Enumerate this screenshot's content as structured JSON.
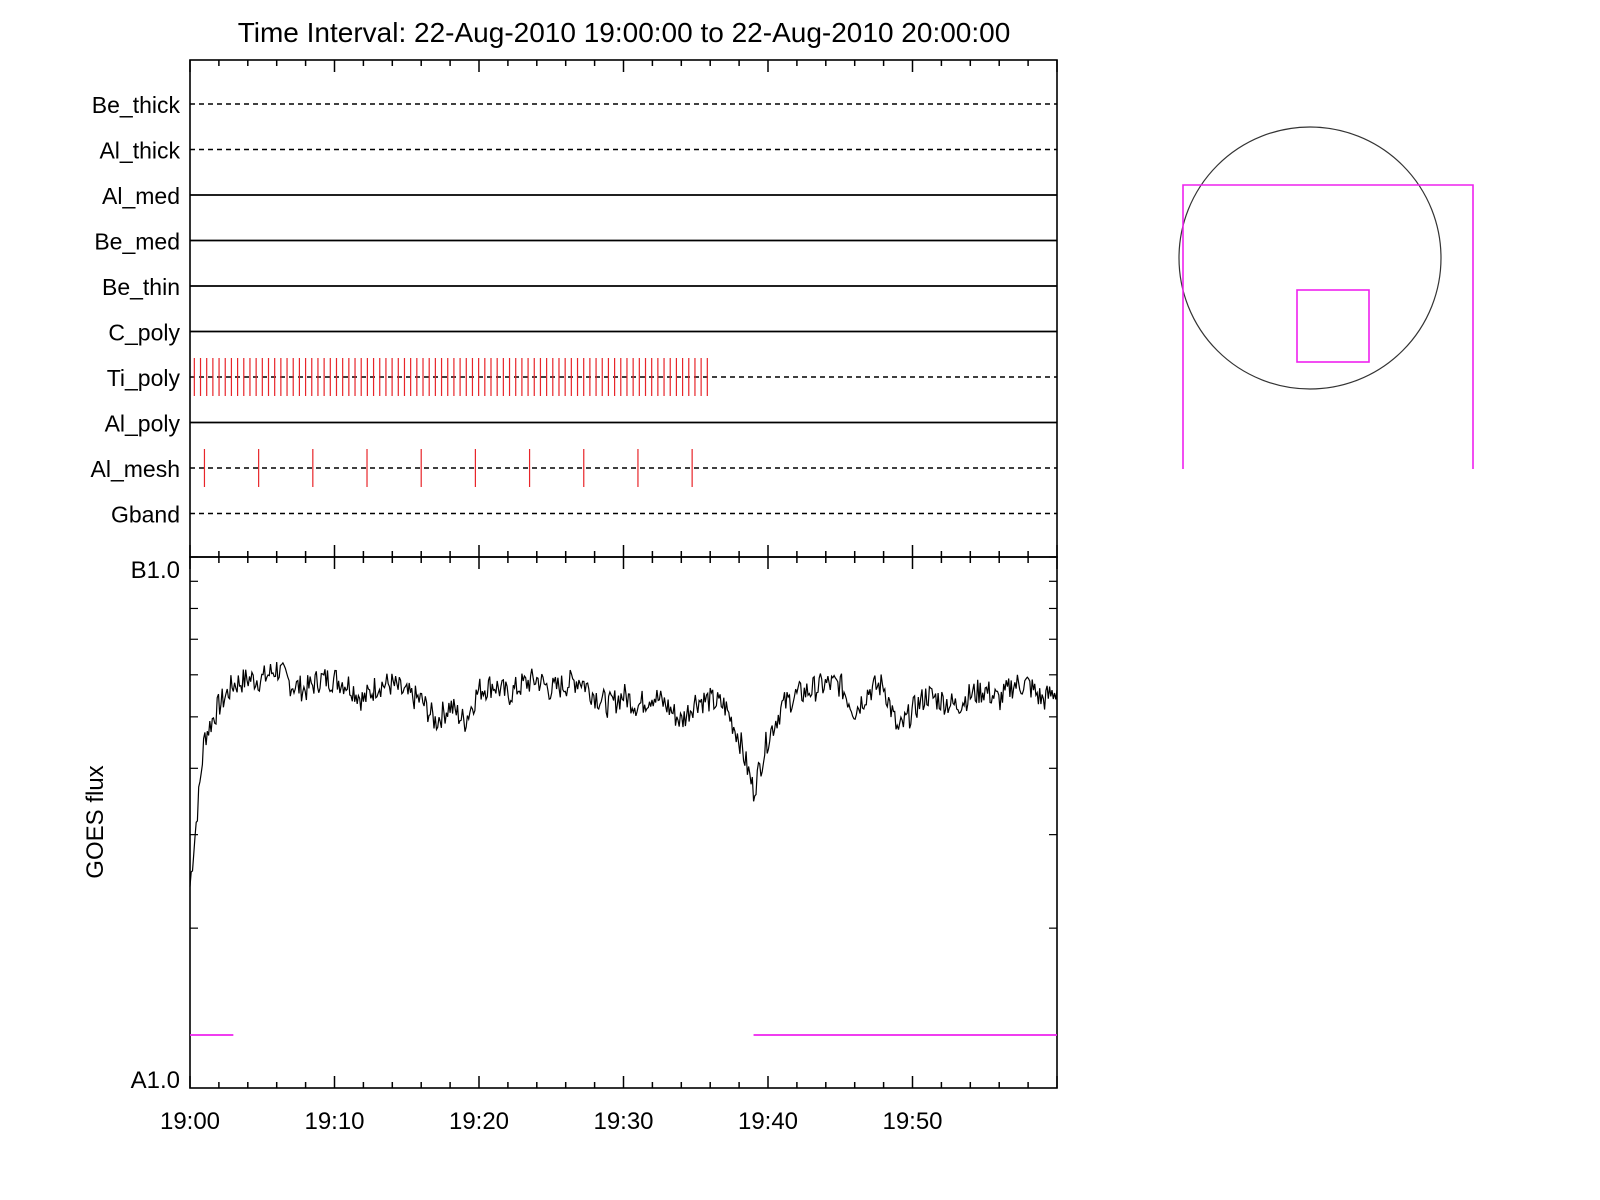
{
  "title": "Time Interval: 22-Aug-2010 19:00:00 to 22-Aug-2010 20:00:00",
  "colors": {
    "axis": "#000000",
    "events": "#e8252a",
    "magenta": "#ee22ee",
    "curve": "#000000"
  },
  "chart_data": [
    {
      "type": "timeline",
      "x_range": [
        "19:00",
        "20:00"
      ],
      "rows": [
        {
          "name": "Be_thick",
          "style": "dashed",
          "events": []
        },
        {
          "name": "Al_thick",
          "style": "dashed",
          "events": []
        },
        {
          "name": "Al_med",
          "style": "solid",
          "events": []
        },
        {
          "name": "Be_med",
          "style": "solid",
          "events": []
        },
        {
          "name": "Be_thin",
          "style": "solid",
          "events": []
        },
        {
          "name": "C_poly",
          "style": "solid",
          "events": []
        },
        {
          "name": "Ti_poly",
          "style": "dashed",
          "events_range": [
            "19:00:18",
            "19:35:48"
          ],
          "event_count": 84
        },
        {
          "name": "Al_poly",
          "style": "solid",
          "events": []
        },
        {
          "name": "Al_mesh",
          "style": "dashed",
          "events": [
            "19:01:00",
            "19:04:45",
            "19:08:30",
            "19:12:15",
            "19:16:00",
            "19:19:45",
            "19:23:30",
            "19:27:15",
            "19:31:00",
            "19:34:45"
          ]
        },
        {
          "name": "Gband",
          "style": "dashed",
          "events": []
        }
      ]
    },
    {
      "type": "line",
      "ylabel": "GOES flux",
      "ytick_labels": [
        "B1.0",
        "A1.0"
      ],
      "ylim": [
        "A1.0",
        "B1.0"
      ],
      "xlim": [
        "19:00",
        "20:00"
      ],
      "xtick_labels": [
        "19:00",
        "19:10",
        "19:20",
        "19:30",
        "19:40",
        "19:50"
      ],
      "series": [
        {
          "x_minutes": [
            0,
            1,
            2,
            3,
            4,
            5,
            6,
            7,
            8,
            9,
            10,
            11,
            12,
            13,
            14,
            15,
            16,
            17,
            18,
            19,
            20,
            21,
            22,
            23,
            24,
            25,
            26,
            27,
            28,
            29,
            30,
            31,
            32,
            33,
            34,
            35,
            36,
            37,
            38,
            39,
            40,
            41,
            42,
            43,
            44,
            45,
            46,
            47,
            48,
            49,
            50,
            51,
            52,
            53,
            54,
            55,
            56,
            57,
            58,
            59,
            60
          ],
          "y_frac": [
            0.38,
            0.66,
            0.72,
            0.76,
            0.77,
            0.77,
            0.79,
            0.76,
            0.75,
            0.77,
            0.77,
            0.76,
            0.73,
            0.76,
            0.76,
            0.74,
            0.73,
            0.69,
            0.72,
            0.69,
            0.75,
            0.76,
            0.74,
            0.76,
            0.77,
            0.75,
            0.76,
            0.77,
            0.74,
            0.72,
            0.74,
            0.72,
            0.74,
            0.72,
            0.69,
            0.73,
            0.73,
            0.72,
            0.66,
            0.56,
            0.66,
            0.72,
            0.74,
            0.75,
            0.76,
            0.76,
            0.71,
            0.75,
            0.76,
            0.67,
            0.71,
            0.74,
            0.73,
            0.72,
            0.74,
            0.75,
            0.73,
            0.76,
            0.76,
            0.73,
            0.75
          ]
        }
      ],
      "highlight_segments": [
        [
          "19:00",
          "19:03"
        ],
        [
          "19:39",
          "20:00"
        ]
      ]
    },
    {
      "type": "locator",
      "description_shapes": [
        "circle",
        "magenta-frame",
        "magenta-box"
      ]
    }
  ]
}
